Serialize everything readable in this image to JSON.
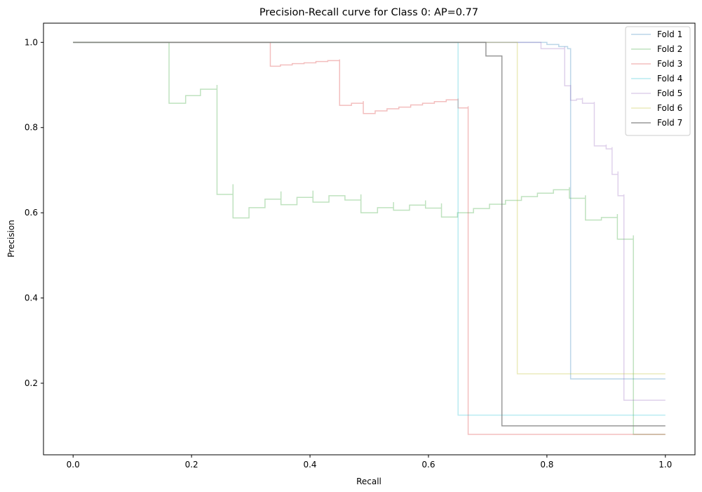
{
  "chart_data": {
    "type": "line",
    "title": "Precision-Recall curve for Class 0: AP=0.77",
    "xlabel": "Recall",
    "ylabel": "Precision",
    "xlim": [
      -0.05,
      1.05
    ],
    "ylim": [
      0.032,
      1.045
    ],
    "xticks": [
      0.0,
      0.2,
      0.4,
      0.6,
      0.8,
      1.0
    ],
    "xtick_labels": [
      "0.0",
      "0.2",
      "0.4",
      "0.6",
      "0.8",
      "1.0"
    ],
    "yticks": [
      0.2,
      0.4,
      0.6,
      0.8,
      1.0
    ],
    "ytick_labels": [
      "0.2",
      "0.4",
      "0.6",
      "0.8",
      "1.0"
    ],
    "grid": false,
    "legend_position": "top-right",
    "series": [
      {
        "name": "Fold 1",
        "color": "#1f77b4",
        "opacity": 0.3,
        "x": [
          0.0,
          0.78,
          0.8,
          0.82,
          0.835,
          0.84,
          1.0
        ],
        "y": [
          1.0,
          1.0,
          0.995,
          0.99,
          0.985,
          0.21,
          0.21
        ]
      },
      {
        "name": "Fold 2",
        "color": "#2ca02c",
        "opacity": 0.3,
        "x": [
          0.0,
          0.162,
          0.162,
          0.19,
          0.215,
          0.243,
          0.243,
          0.27,
          0.27,
          0.297,
          0.324,
          0.351,
          0.351,
          0.378,
          0.405,
          0.405,
          0.432,
          0.459,
          0.486,
          0.486,
          0.514,
          0.541,
          0.541,
          0.568,
          0.595,
          0.595,
          0.622,
          0.622,
          0.649,
          0.676,
          0.703,
          0.73,
          0.757,
          0.784,
          0.811,
          0.838,
          0.838,
          0.865,
          0.865,
          0.892,
          0.919,
          0.919,
          0.946,
          0.946,
          1.0
        ],
        "y": [
          1.0,
          1.0,
          0.857,
          0.875,
          0.89,
          0.9,
          0.643,
          0.667,
          0.588,
          0.612,
          0.632,
          0.65,
          0.619,
          0.636,
          0.652,
          0.625,
          0.64,
          0.63,
          0.643,
          0.6,
          0.612,
          0.625,
          0.606,
          0.618,
          0.629,
          0.611,
          0.622,
          0.59,
          0.6,
          0.61,
          0.62,
          0.629,
          0.638,
          0.646,
          0.654,
          0.66,
          0.634,
          0.641,
          0.583,
          0.589,
          0.597,
          0.538,
          0.547,
          0.08,
          0.08
        ]
      },
      {
        "name": "Fold 3",
        "color": "#d62728",
        "opacity": 0.3,
        "x": [
          0.0,
          0.333,
          0.333,
          0.35,
          0.37,
          0.39,
          0.41,
          0.43,
          0.45,
          0.45,
          0.47,
          0.49,
          0.49,
          0.51,
          0.53,
          0.55,
          0.57,
          0.59,
          0.61,
          0.63,
          0.65,
          0.65,
          0.667,
          0.667,
          1.0
        ],
        "y": [
          1.0,
          1.0,
          0.944,
          0.947,
          0.95,
          0.952,
          0.955,
          0.957,
          0.96,
          0.852,
          0.857,
          0.862,
          0.833,
          0.839,
          0.844,
          0.848,
          0.853,
          0.857,
          0.861,
          0.865,
          0.868,
          0.846,
          0.85,
          0.08,
          0.08
        ]
      },
      {
        "name": "Fold 4",
        "color": "#17becf",
        "opacity": 0.3,
        "x": [
          0.0,
          0.65,
          0.65,
          1.0
        ],
        "y": [
          1.0,
          1.0,
          0.125,
          0.125
        ]
      },
      {
        "name": "Fold 5",
        "color": "#9467bd",
        "opacity": 0.3,
        "x": [
          0.0,
          0.79,
          0.79,
          0.8,
          0.83,
          0.83,
          0.84,
          0.84,
          0.85,
          0.86,
          0.86,
          0.88,
          0.88,
          0.9,
          0.9,
          0.91,
          0.91,
          0.92,
          0.92,
          0.93,
          0.93,
          0.94,
          0.94,
          1.0
        ],
        "y": [
          1.0,
          1.0,
          0.985,
          0.985,
          0.99,
          0.898,
          0.9,
          0.864,
          0.867,
          0.87,
          0.857,
          0.86,
          0.757,
          0.76,
          0.75,
          0.754,
          0.69,
          0.697,
          0.64,
          0.643,
          0.16,
          0.16,
          0.16,
          0.16
        ]
      },
      {
        "name": "Fold 6",
        "color": "#bcbd22",
        "opacity": 0.3,
        "x": [
          0.0,
          0.75,
          0.75,
          1.0
        ],
        "y": [
          1.0,
          1.0,
          0.222,
          0.222
        ]
      },
      {
        "name": "Fold 7",
        "color": "#7f7f7f",
        "opacity": 0.8,
        "x": [
          0.0,
          0.697,
          0.697,
          0.724,
          0.724,
          1.0
        ],
        "y": [
          1.0,
          1.0,
          0.968,
          0.968,
          0.1,
          0.1
        ]
      }
    ]
  }
}
